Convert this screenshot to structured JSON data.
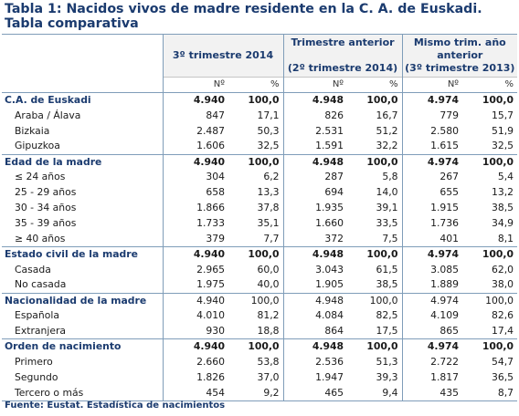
{
  "title": "Tabla 1: Nacidos vivos de madre residente en la C. A. de Euskadi. Tabla comparativa",
  "headers": {
    "groups": [
      {
        "lines": [
          "3º trimestre 2014"
        ]
      },
      {
        "lines": [
          "Trimestre anterior",
          "",
          "(2º trimestre 2014)"
        ]
      },
      {
        "lines": [
          "Mismo trim. año",
          "anterior",
          "(3º trimestre 2013)"
        ]
      }
    ],
    "sub": [
      "Nº",
      "%",
      "Nº",
      "%",
      "Nº",
      "%"
    ]
  },
  "rows": [
    {
      "type": "sec",
      "bold": true,
      "label": "C.A. de Euskadi",
      "values": [
        "4.940",
        "100,0",
        "4.948",
        "100,0",
        "4.974",
        "100,0"
      ]
    },
    {
      "type": "sub",
      "label": "Araba / Álava",
      "values": [
        "847",
        "17,1",
        "826",
        "16,7",
        "779",
        "15,7"
      ]
    },
    {
      "type": "sub",
      "label": "Bizkaia",
      "values": [
        "2.487",
        "50,3",
        "2.531",
        "51,2",
        "2.580",
        "51,9"
      ]
    },
    {
      "type": "sub",
      "label": "Gipuzkoa",
      "values": [
        "1.606",
        "32,5",
        "1.591",
        "32,2",
        "1.615",
        "32,5"
      ]
    },
    {
      "type": "sec",
      "bold": true,
      "label": "Edad de la madre",
      "values": [
        "4.940",
        "100,0",
        "4.948",
        "100,0",
        "4.974",
        "100,0"
      ]
    },
    {
      "type": "sub",
      "label": "≤ 24 años",
      "values": [
        "304",
        "6,2",
        "287",
        "5,8",
        "267",
        "5,4"
      ]
    },
    {
      "type": "sub",
      "label": "25 - 29 años",
      "values": [
        "658",
        "13,3",
        "694",
        "14,0",
        "655",
        "13,2"
      ]
    },
    {
      "type": "sub",
      "label": "30 - 34 años",
      "values": [
        "1.866",
        "37,8",
        "1.935",
        "39,1",
        "1.915",
        "38,5"
      ]
    },
    {
      "type": "sub",
      "label": "35 - 39 años",
      "values": [
        "1.733",
        "35,1",
        "1.660",
        "33,5",
        "1.736",
        "34,9"
      ]
    },
    {
      "type": "sub",
      "label": "≥ 40 años",
      "values": [
        "379",
        "7,7",
        "372",
        "7,5",
        "401",
        "8,1"
      ]
    },
    {
      "type": "sec",
      "bold": true,
      "label": "Estado civil de la madre",
      "values": [
        "4.940",
        "100,0",
        "4.948",
        "100,0",
        "4.974",
        "100,0"
      ]
    },
    {
      "type": "sub",
      "label": "Casada",
      "values": [
        "2.965",
        "60,0",
        "3.043",
        "61,5",
        "3.085",
        "62,0"
      ]
    },
    {
      "type": "sub",
      "label": "No casada",
      "values": [
        "1.975",
        "40,0",
        "1.905",
        "38,5",
        "1.889",
        "38,0"
      ]
    },
    {
      "type": "sec",
      "bold": false,
      "label": "Nacionalidad de la madre",
      "values": [
        "4.940",
        "100,0",
        "4.948",
        "100,0",
        "4.974",
        "100,0"
      ]
    },
    {
      "type": "sub",
      "label": "Española",
      "values": [
        "4.010",
        "81,2",
        "4.084",
        "82,5",
        "4.109",
        "82,6"
      ]
    },
    {
      "type": "sub",
      "label": "Extranjera",
      "values": [
        "930",
        "18,8",
        "864",
        "17,5",
        "865",
        "17,4"
      ]
    },
    {
      "type": "sec",
      "bold": true,
      "label": "Orden de nacimiento",
      "values": [
        "4.940",
        "100,0",
        "4.948",
        "100,0",
        "4.974",
        "100,0"
      ]
    },
    {
      "type": "sub",
      "label": "Primero",
      "values": [
        "2.660",
        "53,8",
        "2.536",
        "51,3",
        "2.722",
        "54,7"
      ]
    },
    {
      "type": "sub",
      "label": "Segundo",
      "values": [
        "1.826",
        "37,0",
        "1.947",
        "39,3",
        "1.817",
        "36,5"
      ]
    },
    {
      "type": "sub",
      "label": "Tercero o más",
      "values": [
        "454",
        "9,2",
        "465",
        "9,4",
        "435",
        "8,7"
      ]
    }
  ],
  "footnote": "Fuente: Eustat. Estadística de nacimientos"
}
